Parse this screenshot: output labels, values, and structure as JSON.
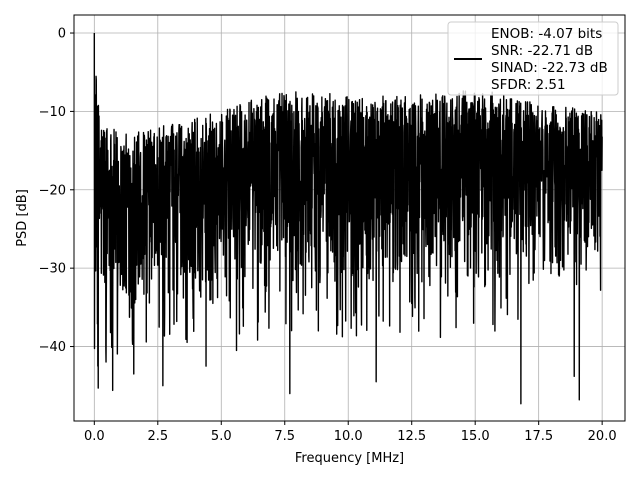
{
  "chart_data": {
    "type": "line",
    "xlabel": "Frequency [MHz]",
    "ylabel": "PSD [dB]",
    "xlim": [
      -0.8,
      20.9
    ],
    "ylim": [
      -49.5,
      2.3
    ],
    "x_ticks": [
      "0.0",
      "2.5",
      "5.0",
      "7.5",
      "10.0",
      "12.5",
      "15.0",
      "17.5",
      "20.0"
    ],
    "x_tick_values": [
      0,
      2.5,
      5,
      7.5,
      10,
      12.5,
      15,
      17.5,
      20
    ],
    "y_ticks": [
      "0",
      "−10",
      "−20",
      "−30",
      "−40"
    ],
    "y_tick_values": [
      0,
      -10,
      -20,
      -30,
      -40
    ],
    "grid": true,
    "legend_position": "top-right",
    "legend_lines": [
      "ENOB: -4.07 bits",
      "SNR: -22.71 dB",
      "SINAD: -22.73 dB",
      "SFDR: 2.51"
    ],
    "series": [
      {
        "color": "#000000",
        "x_range": [
          0,
          20
        ],
        "dc_peak": 0.0,
        "envelope": [
          {
            "x": 0.0,
            "top": -2,
            "bottom": -38
          },
          {
            "x": 0.2,
            "top": -10,
            "bottom": -40
          },
          {
            "x": 1.0,
            "top": -13,
            "bottom": -38
          },
          {
            "x": 2.5,
            "top": -12,
            "bottom": -36
          },
          {
            "x": 5.0,
            "top": -10,
            "bottom": -36
          },
          {
            "x": 7.5,
            "top": -7,
            "bottom": -35
          },
          {
            "x": 10.0,
            "top": -8,
            "bottom": -35
          },
          {
            "x": 12.5,
            "top": -8,
            "bottom": -35
          },
          {
            "x": 15.0,
            "top": -7,
            "bottom": -35
          },
          {
            "x": 17.5,
            "top": -9,
            "bottom": -35
          },
          {
            "x": 20.0,
            "top": -10,
            "bottom": -30
          }
        ],
        "deep_dips": [
          {
            "x": 0.15,
            "y": -45.3
          },
          {
            "x": 0.45,
            "y": -40.1
          },
          {
            "x": 0.72,
            "y": -45.6
          },
          {
            "x": 1.55,
            "y": -43.5
          },
          {
            "x": 2.7,
            "y": -45.0
          },
          {
            "x": 4.4,
            "y": -42.5
          },
          {
            "x": 5.6,
            "y": -40.5
          },
          {
            "x": 7.7,
            "y": -46.0
          },
          {
            "x": 11.1,
            "y": -44.5
          },
          {
            "x": 16.8,
            "y": -47.3
          },
          {
            "x": 18.9,
            "y": -43.8
          },
          {
            "x": 19.1,
            "y": -46.8
          }
        ]
      }
    ]
  }
}
